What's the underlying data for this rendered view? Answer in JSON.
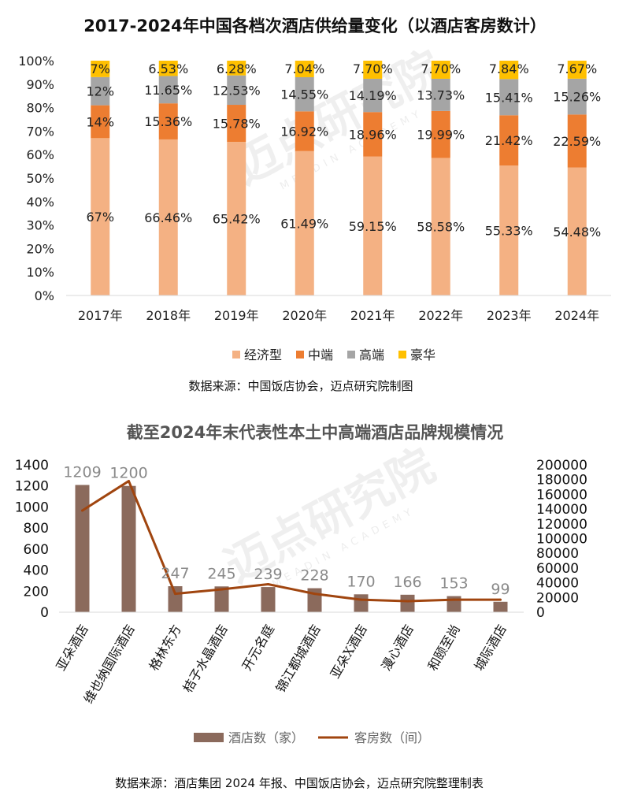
{
  "chart_data": [
    {
      "type": "bar",
      "stacked": true,
      "title": "2017-2024年中国各档次酒店供给量变化（以酒店客房数计）",
      "categories": [
        "2017年",
        "2018年",
        "2019年",
        "2020年",
        "2021年",
        "2022年",
        "2023年",
        "2024年"
      ],
      "ylim": [
        0,
        100
      ],
      "yticks": [
        "0%",
        "10%",
        "20%",
        "30%",
        "40%",
        "50%",
        "60%",
        "70%",
        "80%",
        "90%",
        "100%"
      ],
      "series": [
        {
          "name": "经济型",
          "color": "#f4b183",
          "values": [
            67,
            66.46,
            65.42,
            61.49,
            59.15,
            58.58,
            55.33,
            54.48
          ],
          "labels": [
            "67%",
            "66.46%",
            "65.42%",
            "61.49%",
            "59.15%",
            "58.58%",
            "55.33%",
            "54.48%"
          ]
        },
        {
          "name": "中端",
          "color": "#ed7d31",
          "values": [
            14,
            15.36,
            15.78,
            16.92,
            18.96,
            19.99,
            21.42,
            22.59
          ],
          "labels": [
            "14%",
            "15.36%",
            "15.78%",
            "16.92%",
            "18.96%",
            "19.99%",
            "21.42%",
            "22.59%"
          ]
        },
        {
          "name": "高端",
          "color": "#a5a5a5",
          "values": [
            12,
            11.65,
            12.53,
            14.55,
            14.19,
            13.73,
            15.41,
            15.26
          ],
          "labels": [
            "12%",
            "11.65%",
            "12.53%",
            "14.55%",
            "14.19%",
            "13.73%",
            "15.41%",
            "15.26%"
          ]
        },
        {
          "name": "豪华",
          "color": "#ffc000",
          "values": [
            7,
            6.53,
            6.28,
            7.04,
            7.7,
            7.7,
            7.84,
            7.67
          ],
          "labels": [
            "7%",
            "6.53%",
            "6.28%",
            "7.04%",
            "7.70%",
            "7.70%",
            "7.84%",
            "7.67%"
          ]
        }
      ],
      "legend_position": "bottom",
      "grid": false,
      "source": "数据来源：中国饭店协会，迈点研究院制图"
    },
    {
      "type": "bar+line",
      "title": "截至2024年末代表性本土中高端酒店品牌规模情况",
      "categories": [
        "亚朵酒店",
        "维也纳国际酒店",
        "格林东方",
        "桔子水晶酒店",
        "开元名庭",
        "锦江都城酒店",
        "亚朵X酒店",
        "漫心酒店",
        "和颐至尚",
        "城际酒店"
      ],
      "bar_series": {
        "name": "酒店数（家）",
        "color": "#8b6a5c",
        "values": [
          1209,
          1200,
          247,
          245,
          239,
          228,
          170,
          166,
          153,
          99
        ],
        "labels": [
          "1209",
          "1200",
          "247",
          "245",
          "239",
          "228",
          "170",
          "166",
          "153",
          "99"
        ]
      },
      "line_series": {
        "name": "客房数（间）",
        "color": "#a0450f",
        "values": [
          138000,
          178000,
          25000,
          31000,
          38000,
          25000,
          17000,
          15000,
          17000,
          17000
        ]
      },
      "ylim_left": [
        0,
        1400
      ],
      "yticks_left": [
        "0",
        "200",
        "400",
        "600",
        "800",
        "1000",
        "1200",
        "1400"
      ],
      "ylim_right": [
        0,
        200000
      ],
      "yticks_right": [
        "0",
        "20000",
        "40000",
        "60000",
        "80000",
        "100000",
        "120000",
        "140000",
        "160000",
        "180000",
        "200000"
      ],
      "legend_position": "bottom",
      "grid": false,
      "source": "数据来源：酒店集团 2024 年报、中国饭店协会，迈点研究院整理制表"
    }
  ],
  "watermark": {
    "text": "迈点研究院",
    "sub": "MEADIN ACADEMY"
  }
}
